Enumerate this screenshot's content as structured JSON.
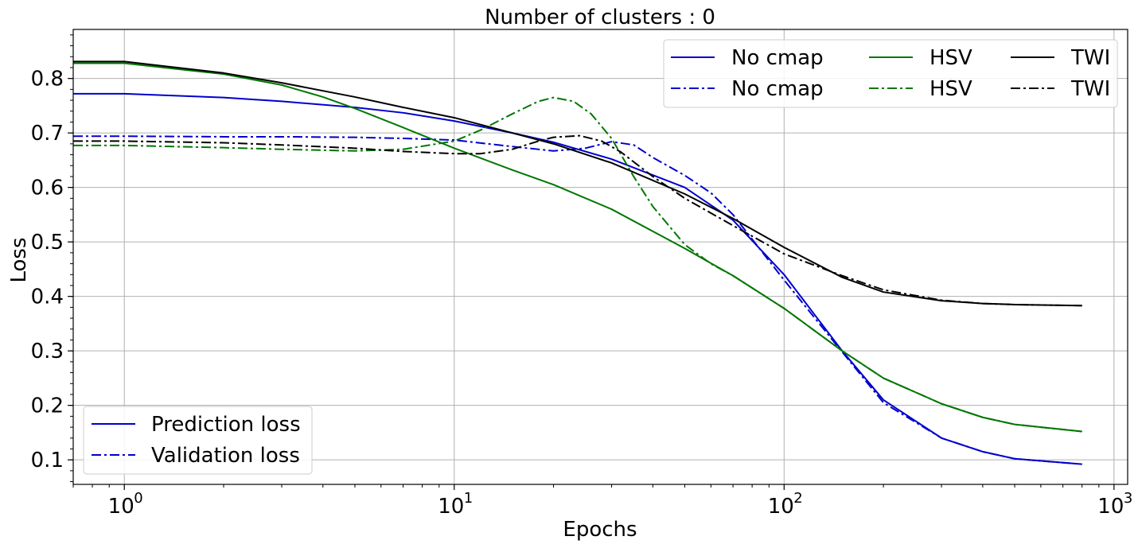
{
  "chart_data": {
    "type": "line",
    "title": "Number of clusters : 0",
    "xlabel": "Epochs",
    "ylabel": "Loss",
    "xscale": "log",
    "xlim": [
      0.7,
      1100
    ],
    "ylim": [
      0.055,
      0.89
    ],
    "grid": true,
    "x_ticks": [
      {
        "base": "10",
        "exp": "0",
        "value": 1
      },
      {
        "base": "10",
        "exp": "1",
        "value": 10
      },
      {
        "base": "10",
        "exp": "2",
        "value": 100
      },
      {
        "base": "10",
        "exp": "3",
        "value": 1000
      }
    ],
    "y_ticks": [
      {
        "label": "0.1",
        "value": 0.1
      },
      {
        "label": "0.2",
        "value": 0.2
      },
      {
        "label": "0.3",
        "value": 0.3
      },
      {
        "label": "0.4",
        "value": 0.4
      },
      {
        "label": "0.5",
        "value": 0.5
      },
      {
        "label": "0.6",
        "value": 0.6
      },
      {
        "label": "0.7",
        "value": 0.7
      },
      {
        "label": "0.8",
        "value": 0.8
      }
    ],
    "series": [
      {
        "name": "No cmap",
        "color": "#0000cc",
        "style": "solid",
        "x": [
          0.7,
          1,
          2,
          3,
          5,
          7,
          10,
          15,
          20,
          30,
          50,
          70,
          100,
          150,
          200,
          300,
          400,
          500,
          800
        ],
        "y": [
          0.772,
          0.772,
          0.765,
          0.758,
          0.747,
          0.737,
          0.722,
          0.7,
          0.683,
          0.652,
          0.6,
          0.54,
          0.44,
          0.3,
          0.21,
          0.14,
          0.115,
          0.102,
          0.092
        ]
      },
      {
        "name": "No cmap",
        "color": "#0000cc",
        "style": "dashdot",
        "x": [
          0.7,
          1,
          2,
          3,
          5,
          7,
          10,
          15,
          20,
          25,
          30,
          35,
          40,
          50,
          60,
          70,
          80,
          100,
          150,
          200,
          300,
          400,
          500,
          800
        ],
        "y": [
          0.694,
          0.694,
          0.693,
          0.693,
          0.692,
          0.69,
          0.687,
          0.675,
          0.667,
          0.672,
          0.684,
          0.678,
          0.655,
          0.622,
          0.59,
          0.55,
          0.505,
          0.43,
          0.298,
          0.205,
          0.14,
          0.115,
          0.102,
          0.092
        ]
      },
      {
        "name": "HSV",
        "color": "#007700",
        "style": "solid",
        "x": [
          0.7,
          1,
          2,
          3,
          4,
          5,
          7,
          10,
          15,
          20,
          30,
          50,
          70,
          100,
          150,
          200,
          300,
          400,
          500,
          800
        ],
        "y": [
          0.828,
          0.828,
          0.808,
          0.788,
          0.766,
          0.745,
          0.71,
          0.672,
          0.632,
          0.605,
          0.56,
          0.488,
          0.438,
          0.378,
          0.3,
          0.25,
          0.203,
          0.178,
          0.165,
          0.152
        ]
      },
      {
        "name": "HSV",
        "color": "#007700",
        "style": "dashdot",
        "x": [
          0.7,
          1,
          2,
          3,
          5,
          7,
          10,
          12,
          15,
          18,
          20,
          23,
          26,
          30,
          35,
          40,
          50,
          60,
          70,
          100,
          150,
          200,
          300,
          400,
          500,
          800
        ],
        "y": [
          0.677,
          0.677,
          0.673,
          0.67,
          0.667,
          0.67,
          0.685,
          0.705,
          0.735,
          0.758,
          0.765,
          0.758,
          0.735,
          0.69,
          0.62,
          0.565,
          0.495,
          0.46,
          0.438,
          0.378,
          0.3,
          0.25,
          0.203,
          0.178,
          0.165,
          0.152
        ]
      },
      {
        "name": "TWI",
        "color": "#000000",
        "style": "solid",
        "x": [
          0.7,
          1,
          2,
          3,
          5,
          7,
          10,
          15,
          20,
          30,
          50,
          70,
          100,
          150,
          200,
          300,
          400,
          500,
          800
        ],
        "y": [
          0.831,
          0.831,
          0.81,
          0.792,
          0.766,
          0.747,
          0.728,
          0.7,
          0.68,
          0.645,
          0.588,
          0.543,
          0.49,
          0.435,
          0.408,
          0.392,
          0.387,
          0.385,
          0.383
        ]
      },
      {
        "name": "TWI",
        "color": "#000000",
        "style": "dashdot",
        "x": [
          0.7,
          1,
          2,
          3,
          5,
          7,
          10,
          12,
          15,
          18,
          20,
          24,
          28,
          32,
          40,
          50,
          70,
          100,
          150,
          200,
          300,
          400,
          500,
          800
        ],
        "y": [
          0.685,
          0.685,
          0.682,
          0.678,
          0.672,
          0.666,
          0.662,
          0.662,
          0.67,
          0.685,
          0.692,
          0.695,
          0.685,
          0.665,
          0.62,
          0.58,
          0.53,
          0.478,
          0.438,
          0.412,
          0.393,
          0.387,
          0.385,
          0.383
        ]
      }
    ],
    "legend_top_right": {
      "placement": "top-right",
      "columns": 3,
      "entries": [
        {
          "label": "No cmap",
          "color": "#0000cc",
          "style": "solid"
        },
        {
          "label": "No cmap",
          "color": "#0000cc",
          "style": "dashdot"
        },
        {
          "label": "HSV",
          "color": "#007700",
          "style": "solid"
        },
        {
          "label": "HSV",
          "color": "#007700",
          "style": "dashdot"
        },
        {
          "label": "TWI",
          "color": "#000000",
          "style": "solid"
        },
        {
          "label": "TWI",
          "color": "#000000",
          "style": "dashdot"
        }
      ]
    },
    "legend_bottom_left": {
      "placement": "bottom-left",
      "entries": [
        {
          "label": "Prediction loss",
          "color": "#0000cc",
          "style": "solid"
        },
        {
          "label": "Validation loss",
          "color": "#0000cc",
          "style": "dashdot"
        }
      ]
    }
  }
}
